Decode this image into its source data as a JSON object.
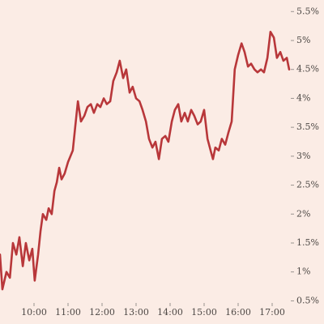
{
  "chart_data": {
    "type": "line",
    "x": [
      9,
      9.07,
      9.19,
      9.29,
      9.38,
      9.48,
      9.57,
      9.67,
      9.76,
      9.86,
      9.95,
      10.02,
      10.12,
      10.19,
      10.26,
      10.36,
      10.43,
      10.52,
      10.6,
      10.67,
      10.74,
      10.81,
      10.9,
      11,
      11.07,
      11.14,
      11.21,
      11.29,
      11.38,
      11.48,
      11.57,
      11.67,
      11.76,
      11.86,
      11.95,
      12.05,
      12.14,
      12.24,
      12.33,
      12.43,
      12.52,
      12.62,
      12.71,
      12.81,
      12.9,
      13,
      13.1,
      13.19,
      13.29,
      13.38,
      13.48,
      13.57,
      13.67,
      13.76,
      13.86,
      13.95,
      14.05,
      14.14,
      14.24,
      14.33,
      14.43,
      14.52,
      14.62,
      14.71,
      14.81,
      14.9,
      15,
      15.1,
      15.19,
      15.26,
      15.33,
      15.43,
      15.52,
      15.62,
      15.71,
      15.81,
      15.9,
      16,
      16.1,
      16.19,
      16.29,
      16.38,
      16.48,
      16.57,
      16.67,
      16.76,
      16.86,
      16.95,
      17.05,
      17.14,
      17.24,
      17.33,
      17.43,
      17.5
    ],
    "series": [
      {
        "color": "#b8373a",
        "values": [
          1.3,
          0.7,
          1.0,
          0.9,
          1.5,
          1.3,
          1.6,
          1.1,
          1.5,
          1.2,
          1.4,
          0.85,
          1.3,
          1.7,
          2.0,
          1.9,
          2.1,
          2.0,
          2.4,
          2.55,
          2.8,
          2.6,
          2.7,
          2.9,
          3.0,
          3.1,
          3.5,
          3.95,
          3.6,
          3.7,
          3.85,
          3.9,
          3.75,
          3.9,
          3.85,
          4.0,
          3.9,
          3.95,
          4.3,
          4.45,
          4.65,
          4.35,
          4.5,
          4.1,
          4.2,
          4.0,
          3.95,
          3.8,
          3.6,
          3.3,
          3.15,
          3.25,
          2.95,
          3.3,
          3.35,
          3.25,
          3.6,
          3.8,
          3.9,
          3.6,
          3.75,
          3.6,
          3.8,
          3.7,
          3.55,
          3.6,
          3.8,
          3.3,
          3.1,
          2.95,
          3.15,
          3.1,
          3.3,
          3.2,
          3.4,
          3.6,
          4.5,
          4.75,
          4.95,
          4.8,
          4.55,
          4.6,
          4.5,
          4.45,
          4.5,
          4.45,
          4.7,
          5.15,
          5.05,
          4.7,
          4.8,
          4.65,
          4.7,
          4.5
        ]
      }
    ],
    "xlim": [
      9,
      17.5
    ],
    "xticks": [
      {
        "value": 10,
        "label": "10:00"
      },
      {
        "value": 11,
        "label": "11:00"
      },
      {
        "value": 12,
        "label": "12:00"
      },
      {
        "value": 13,
        "label": "13:00"
      },
      {
        "value": 14,
        "label": "14:00"
      },
      {
        "value": 15,
        "label": "15:00"
      },
      {
        "value": 16,
        "label": "16:00"
      },
      {
        "value": 17,
        "label": "17:00"
      }
    ],
    "ylim": [
      0.1,
      5.7
    ],
    "yticks": [
      {
        "value": 0.5,
        "label": "0.5%"
      },
      {
        "value": 1,
        "label": "1%"
      },
      {
        "value": 1.5,
        "label": "1.5%"
      },
      {
        "value": 2,
        "label": "2%"
      },
      {
        "value": 2.5,
        "label": "2.5%"
      },
      {
        "value": 3,
        "label": "3%"
      },
      {
        "value": 3.5,
        "label": "3.5%"
      },
      {
        "value": 4,
        "label": "4%"
      },
      {
        "value": 4.5,
        "label": "4.5%"
      },
      {
        "value": 5,
        "label": "5%"
      },
      {
        "value": 5.5,
        "label": "5.5%"
      }
    ],
    "grid": false
  }
}
